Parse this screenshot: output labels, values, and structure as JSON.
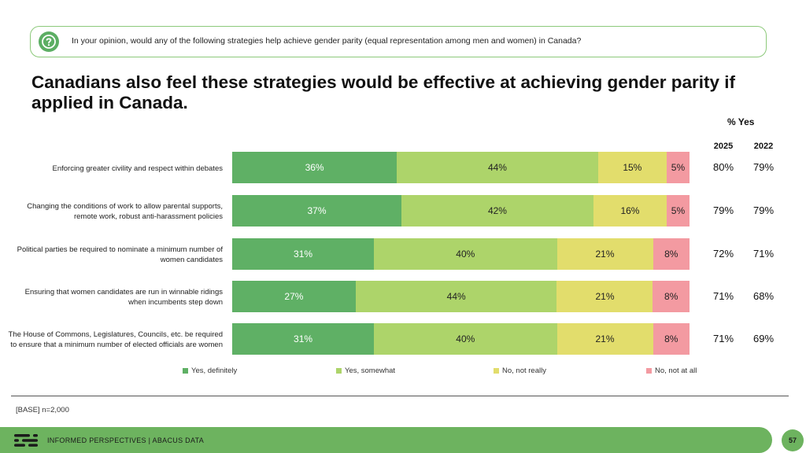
{
  "question": "In your opinion, would any of the following strategies help achieve gender parity (equal representation among men and women) in Canada?",
  "title": "Canadians also feel these strategies would be effective at achieving gender parity if applied in Canada.",
  "yes_header": "% Yes",
  "years": [
    "2025",
    "2022"
  ],
  "colors": {
    "yes_definitely": "#5fb065",
    "yes_somewhat": "#add46a",
    "no_not_really": "#e2dd6c",
    "no_not_at_all": "#f39aa1",
    "accent": "#6db35f"
  },
  "chart_data": {
    "type": "bar",
    "orientation": "horizontal-stacked-100",
    "categories": [
      "Enforcing greater civility and respect within debates",
      "Changing the conditions of work to allow parental supports, remote work, robust anti-harassment policies",
      "Political parties be required to nominate a minimum number of women candidates",
      "Ensuring that women candidates are run in winnable ridings when incumbents step down",
      "The House of Commons, Legislatures, Councils, etc. be required to ensure that a minimum number of elected officials are women"
    ],
    "series": [
      {
        "name": "Yes, definitely",
        "values": [
          36,
          37,
          31,
          27,
          31
        ],
        "labels": [
          "36%",
          "37%",
          "31%",
          "27%",
          "31%"
        ]
      },
      {
        "name": "Yes, somewhat",
        "values": [
          44,
          42,
          40,
          44,
          40
        ],
        "labels": [
          "44%",
          "42%",
          "40%",
          "44%",
          "40%"
        ]
      },
      {
        "name": "No, not really",
        "values": [
          15,
          16,
          21,
          21,
          21
        ],
        "labels": [
          "15%",
          "16%",
          "21%",
          "21%",
          "21%"
        ]
      },
      {
        "name": "No, not at all",
        "values": [
          5,
          5,
          8,
          8,
          8
        ],
        "labels": [
          "5%",
          "5%",
          "8%",
          "8%",
          "8%"
        ]
      }
    ],
    "yes_2025": [
      "80%",
      "79%",
      "72%",
      "71%",
      "71%"
    ],
    "yes_2022": [
      "79%",
      "79%",
      "71%",
      "68%",
      "69%"
    ],
    "legend_position": "bottom",
    "grid": false
  },
  "base_note": "[BASE] n=2,000",
  "footer": "INFORMED PERSPECTIVES  |  ABACUS DATA",
  "page_number": "57"
}
